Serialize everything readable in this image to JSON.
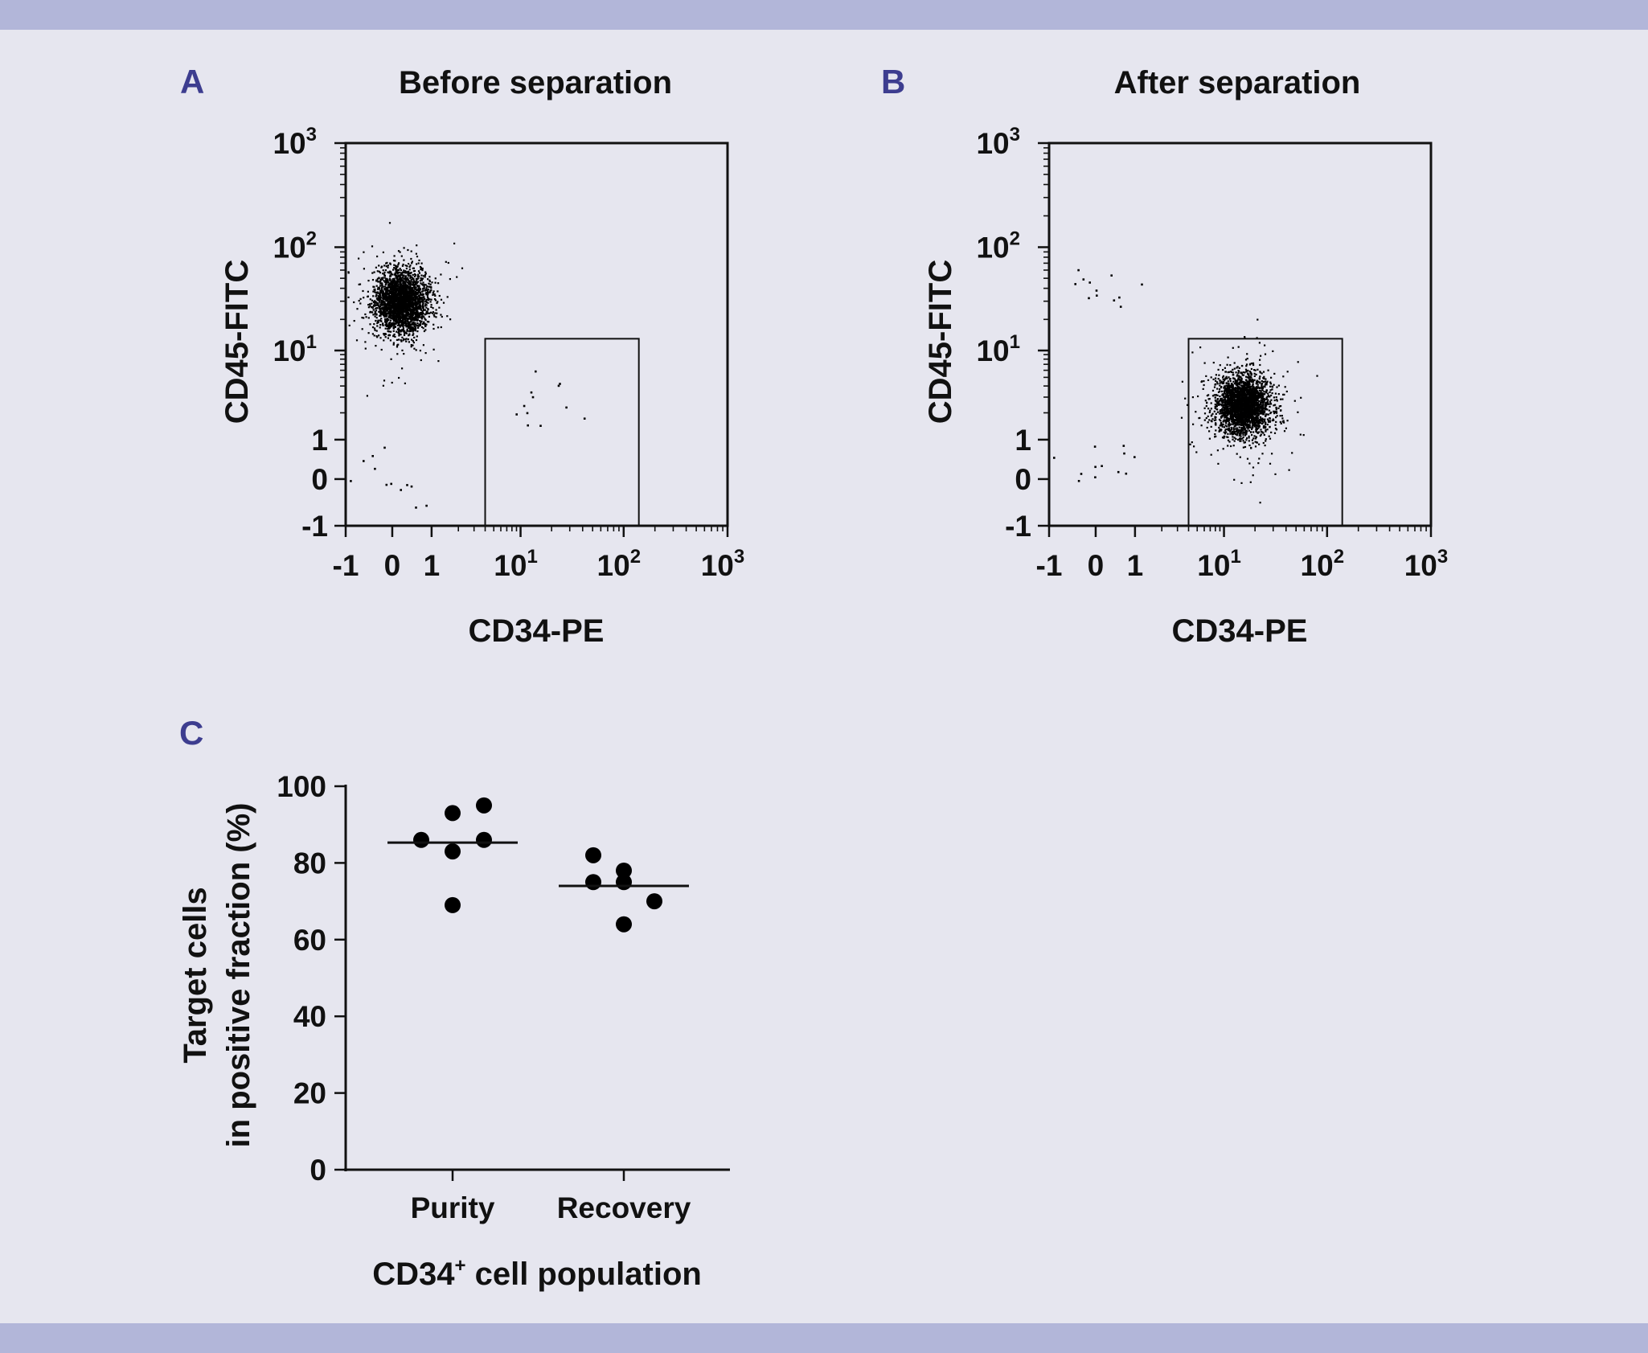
{
  "colors": {
    "band": "#b2b6d9",
    "background": "#e6e6ef",
    "panel_letter": "#3d3d8f",
    "ink": "#111111"
  },
  "panels": {
    "a": {
      "letter": "A",
      "title": "Before separation"
    },
    "b": {
      "letter": "B",
      "title": "After separation"
    },
    "c": {
      "letter": "C"
    }
  },
  "chart_data": [
    {
      "panel": "A",
      "type": "scatter",
      "title": "Before separation",
      "xlabel": "CD34-PE",
      "ylabel": "CD45-FITC",
      "scale": "biexponential",
      "xlim": [
        -1,
        1000
      ],
      "ylim": [
        -1,
        1000
      ],
      "x_ticks": [
        "-1",
        "0",
        "1",
        "10^1",
        "10^2",
        "10^3"
      ],
      "y_ticks": [
        "-1",
        "0",
        "1",
        "10^1",
        "10^2",
        "10^3"
      ],
      "gate": {
        "x": [
          4,
          140
        ],
        "y": [
          -1,
          13
        ]
      },
      "populations": [
        {
          "name": "",
          "center": [
            0.2,
            30
          ],
          "spread": "major"
        },
        {
          "name": "",
          "center": [
            0.2,
            0.1
          ],
          "spread": "sparse"
        },
        {
          "name": "",
          "center": [
            15,
            2.5
          ],
          "spread": "sparse"
        }
      ]
    },
    {
      "panel": "B",
      "type": "scatter",
      "title": "After separation",
      "xlabel": "CD34-PE",
      "ylabel": "CD45-FITC",
      "scale": "biexponential",
      "xlim": [
        -1,
        1000
      ],
      "ylim": [
        -1,
        1000
      ],
      "x_ticks": [
        "-1",
        "0",
        "1",
        "10^1",
        "10^2",
        "10^3"
      ],
      "y_ticks": [
        "-1",
        "0",
        "1",
        "10^1",
        "10^2",
        "10^3"
      ],
      "gate": {
        "x": [
          4,
          140
        ],
        "y": [
          -1,
          13
        ]
      },
      "populations": [
        {
          "name": "",
          "center": [
            15,
            2.5
          ],
          "spread": "major"
        },
        {
          "name": "",
          "center": [
            0.3,
            35
          ],
          "spread": "sparse"
        },
        {
          "name": "",
          "center": [
            0.2,
            0.5
          ],
          "spread": "sparse"
        }
      ]
    },
    {
      "panel": "C",
      "type": "scatter",
      "xlabel": "CD34+ cell population",
      "xlabel_main": "CD34",
      "xlabel_sup": "+",
      "xlabel_rest": " cell population",
      "ylabel": "Target cells in positive fraction (%)",
      "ylabel_line1": "Target cells",
      "ylabel_line2": "in positive fraction (%)",
      "categories": [
        "Purity",
        "Recovery"
      ],
      "ylim": [
        0,
        100
      ],
      "y_ticks": [
        0,
        20,
        40,
        60,
        80,
        100
      ],
      "series": [
        {
          "category": "Purity",
          "values": [
            86,
            93,
            95,
            83,
            86,
            69
          ],
          "mean": 85.3
        },
        {
          "category": "Recovery",
          "values": [
            82,
            75,
            78,
            75,
            70,
            64
          ],
          "mean": 74
        }
      ]
    }
  ]
}
